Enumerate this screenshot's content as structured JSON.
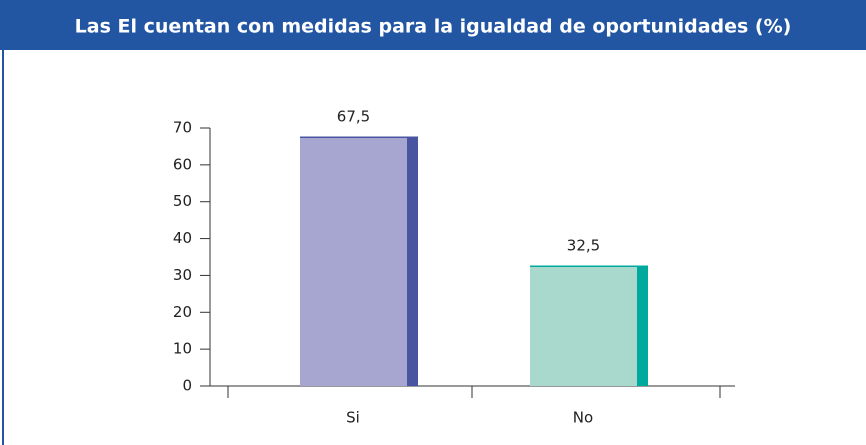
{
  "chart_data": {
    "type": "bar",
    "title": "Las El cuentan con medidas para la igualdad de oportunidades (%)",
    "categories": [
      "Si",
      "No"
    ],
    "values": [
      67.5,
      32.5
    ],
    "value_labels": [
      "67,5",
      "32,5"
    ],
    "colors": [
      "#a6a6d0",
      "#a8d9cc"
    ],
    "side_colors": [
      "#4a55a2",
      "#00a99d"
    ],
    "ylim": [
      0,
      70
    ],
    "yticks": [
      0,
      10,
      20,
      30,
      40,
      50,
      60,
      70
    ],
    "grid": false
  }
}
